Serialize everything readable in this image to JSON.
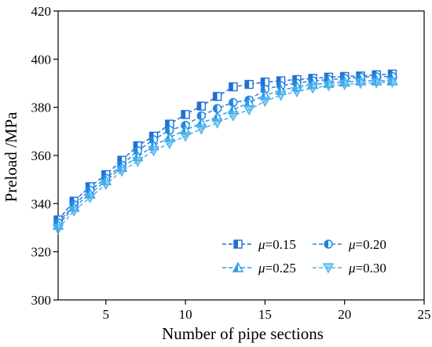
{
  "chart_data": {
    "type": "line",
    "xlabel": "Number of pipe sections",
    "ylabel": "Preload /MPa",
    "xlim": [
      2,
      25
    ],
    "ylim": [
      300,
      420
    ],
    "xticks": [
      5,
      10,
      15,
      20,
      25
    ],
    "yticks": [
      300,
      320,
      340,
      360,
      380,
      400,
      420
    ],
    "x": [
      2,
      3,
      4,
      5,
      6,
      7,
      8,
      9,
      10,
      11,
      12,
      13,
      14,
      15,
      16,
      17,
      18,
      19,
      20,
      21,
      22,
      23
    ],
    "series": [
      {
        "symbol": "μ",
        "value_text": "=0.15",
        "color": "#1f6fd6",
        "marker": "square-half",
        "values": [
          333.2,
          341.0,
          347.0,
          352.0,
          358.0,
          364.0,
          368.0,
          373.0,
          377.0,
          380.5,
          384.5,
          388.5,
          389.5,
          390.5,
          391.0,
          391.5,
          392.0,
          392.5,
          392.8,
          393.0,
          393.5,
          393.8
        ]
      },
      {
        "symbol": "μ",
        "value_text": "=0.20",
        "color": "#1f86e0",
        "marker": "circle-half",
        "values": [
          332.0,
          339.5,
          345.5,
          350.5,
          356.0,
          362.0,
          366.5,
          370.5,
          372.5,
          376.5,
          379.5,
          382.0,
          383.0,
          387.5,
          389.0,
          390.0,
          391.0,
          391.5,
          392.0,
          392.5,
          392.7,
          392.8
        ]
      },
      {
        "symbol": "μ",
        "value_text": "=0.25",
        "color": "#2a9be8",
        "marker": "triangle-up",
        "values": [
          331.0,
          338.5,
          344.0,
          349.5,
          355.0,
          359.5,
          364.0,
          367.5,
          370.5,
          373.5,
          376.0,
          379.0,
          382.0,
          385.0,
          387.0,
          388.5,
          389.5,
          390.0,
          390.5,
          391.0,
          391.0,
          391.0
        ]
      },
      {
        "symbol": "μ",
        "value_text": "=0.30",
        "color": "#4fb3ee",
        "marker": "triangle-down",
        "values": [
          329.5,
          337.0,
          342.5,
          348.0,
          353.5,
          357.5,
          362.0,
          365.0,
          368.0,
          371.0,
          373.5,
          376.5,
          379.0,
          382.5,
          385.0,
          386.5,
          388.0,
          389.0,
          389.5,
          390.0,
          390.2,
          390.5
        ]
      }
    ],
    "legend": {
      "position": "lower-right",
      "columns": 2
    }
  }
}
